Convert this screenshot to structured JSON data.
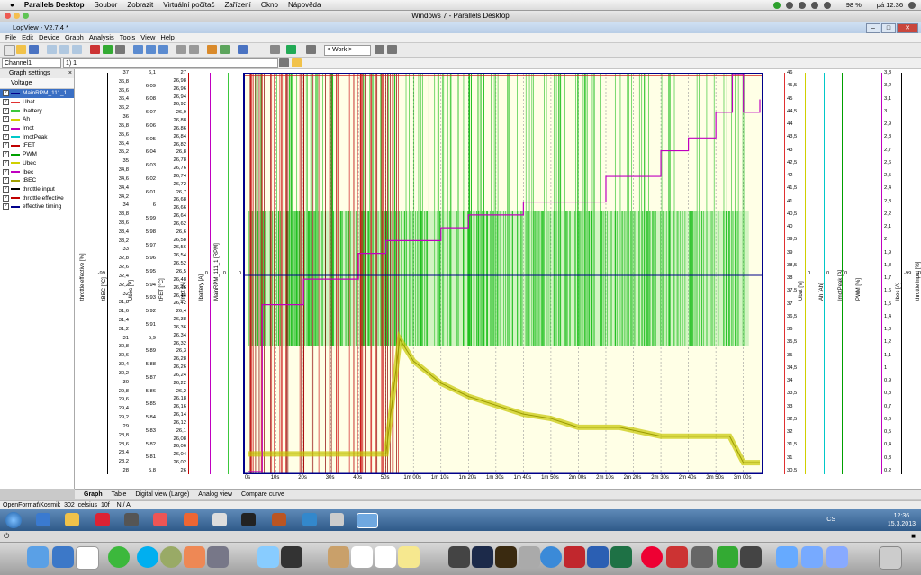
{
  "mac_menubar": {
    "app": "Parallels Desktop",
    "items": [
      "Soubor",
      "Zobrazit",
      "Virtuální počítač",
      "Zařízení",
      "Okno",
      "Nápověda"
    ],
    "battery": "98 %",
    "clock": "pá 12:36"
  },
  "parallels_title": "Windows 7 - Parallels Desktop",
  "window": {
    "title": "LogView - V2.7.4 *",
    "menu": [
      "File",
      "Edit",
      "Device",
      "Graph",
      "Analysis",
      "Tools",
      "View",
      "Help"
    ],
    "work_select": "< Work >",
    "channel_select": "Channel1",
    "expression": "1) 1"
  },
  "left_panel": {
    "header": "Graph settings",
    "tab": "Voltage",
    "items": [
      {
        "label": "MainRPM_111_1",
        "color": "#00008b",
        "checked": true,
        "selected": true
      },
      {
        "label": "Ubat",
        "color": "#e03030",
        "checked": true
      },
      {
        "label": "Ibattery",
        "color": "#3cc83c",
        "checked": true
      },
      {
        "label": "Ah",
        "color": "#d0d000",
        "checked": true
      },
      {
        "label": "Imot",
        "color": "#c000c0",
        "checked": true
      },
      {
        "label": "ImotPeak",
        "color": "#00c8c8",
        "checked": true
      },
      {
        "label": "tFET",
        "color": "#c00000",
        "checked": true
      },
      {
        "label": "PWM",
        "color": "#00a000",
        "checked": true
      },
      {
        "label": "Ubec",
        "color": "#d0d000",
        "checked": true
      },
      {
        "label": "Ibec",
        "color": "#c000c0",
        "checked": true
      },
      {
        "label": "tBEC",
        "color": "#a0a000",
        "checked": true
      },
      {
        "label": "throttle input",
        "color": "#000000",
        "checked": true
      },
      {
        "label": "throttle effective",
        "color": "#c00000",
        "checked": true
      },
      {
        "label": "effective timing",
        "color": "#00008b",
        "checked": true
      }
    ]
  },
  "axes_left": [
    {
      "label": "throttle effective [%]",
      "ticks": [
        "-99"
      ],
      "color": "#000000"
    },
    {
      "label": "tBEC [°C]",
      "ticks": [
        "37",
        "36,8",
        "36,6",
        "36,4",
        "36,2",
        "36",
        "35,8",
        "35,6",
        "35,4",
        "35,2",
        "35",
        "34,8",
        "34,6",
        "34,4",
        "34,2",
        "34",
        "33,8",
        "33,6",
        "33,4",
        "33,2",
        "33",
        "32,8",
        "32,6",
        "32,4",
        "32,2",
        "32",
        "31,8",
        "31,6",
        "31,4",
        "31,2",
        "31",
        "30,8",
        "30,6",
        "30,4",
        "30,2",
        "30",
        "29,8",
        "29,6",
        "29,4",
        "29,2",
        "29",
        "28,8",
        "28,6",
        "28,4",
        "28,2",
        "28"
      ],
      "color": "#a0a000"
    },
    {
      "label": "Ubec [V]",
      "ticks": [
        "6,1",
        "6,09",
        "6,08",
        "6,07",
        "6,06",
        "6,05",
        "6,04",
        "6,03",
        "6,02",
        "6,01",
        "6",
        "5,99",
        "5,98",
        "5,97",
        "5,96",
        "5,95",
        "5,94",
        "5,93",
        "5,92",
        "5,91",
        "5,9",
        "5,89",
        "5,88",
        "5,87",
        "5,86",
        "5,85",
        "5,84",
        "5,83",
        "5,82",
        "5,81",
        "5,8"
      ],
      "color": "#d0d000"
    },
    {
      "label": "tFET [°C]",
      "ticks": [
        "27",
        "26,98",
        "26,96",
        "26,94",
        "26,92",
        "26,9",
        "26,88",
        "26,86",
        "26,84",
        "26,82",
        "26,8",
        "26,78",
        "26,76",
        "26,74",
        "26,72",
        "26,7",
        "26,68",
        "26,66",
        "26,64",
        "26,62",
        "26,6",
        "26,58",
        "26,56",
        "26,54",
        "26,52",
        "26,5",
        "26,48",
        "26,46",
        "26,44",
        "26,42",
        "26,4",
        "26,38",
        "26,36",
        "26,34",
        "26,32",
        "26,3",
        "26,28",
        "26,26",
        "26,24",
        "26,22",
        "26,2",
        "26,18",
        "26,16",
        "26,14",
        "26,12",
        "26,1",
        "26,08",
        "26,06",
        "26,04",
        "26,02",
        "26"
      ],
      "color": "#c00000"
    },
    {
      "label": "Imot [A]",
      "ticks": [
        "0"
      ],
      "color": "#c000c0"
    },
    {
      "label": "Ibattery [A]",
      "ticks": [
        "0"
      ],
      "color": "#3cc83c"
    },
    {
      "label": "MainRPM_111_1 [RPM]",
      "ticks": [
        "0"
      ],
      "color": "#00008b"
    }
  ],
  "axes_right": [
    {
      "label": "Ubat [V]",
      "ticks": [
        "46",
        "45,5",
        "45",
        "44,5",
        "44",
        "43,5",
        "43",
        "42,5",
        "42",
        "41,5",
        "41",
        "40,5",
        "40",
        "39,5",
        "39",
        "38,5",
        "38",
        "37,5",
        "37",
        "36,5",
        "36",
        "35,5",
        "35",
        "34,5",
        "34",
        "33,5",
        "33",
        "32,5",
        "32",
        "31,5",
        "31",
        "30,5"
      ],
      "color": "#e03030"
    },
    {
      "label": "Ah [Ah]",
      "ticks": [
        "0"
      ],
      "color": "#d0d000"
    },
    {
      "label": "ImotPeak [A]",
      "ticks": [
        "0"
      ],
      "color": "#00c8c8"
    },
    {
      "label": "PWM [%]",
      "ticks": [
        "0"
      ],
      "color": "#00a000"
    },
    {
      "label": "Ibec [A]",
      "ticks": [
        "3,3",
        "3,2",
        "3,1",
        "3",
        "2,9",
        "2,8",
        "2,7",
        "2,6",
        "2,5",
        "2,4",
        "2,3",
        "2,2",
        "2,1",
        "2",
        "1,9",
        "1,8",
        "1,7",
        "1,6",
        "1,5",
        "1,4",
        "1,3",
        "1,2",
        "1,1",
        "1",
        "0,9",
        "0,8",
        "0,7",
        "0,6",
        "0,5",
        "0,4",
        "0,3",
        "0,2"
      ],
      "color": "#c000c0"
    },
    {
      "label": "throttle input [%]",
      "ticks": [
        "-99"
      ],
      "color": "#000000"
    },
    {
      "label": "effective timing [°]",
      "ticks": [
        "0"
      ],
      "color": "#00008b"
    }
  ],
  "x_ticks": [
    "0s",
    "10s",
    "20s",
    "30s",
    "40s",
    "50s",
    "1m 00s",
    "1m 10s",
    "1m 20s",
    "1m 30s",
    "1m 40s",
    "1m 50s",
    "2m 00s",
    "2m 10s",
    "2m 20s",
    "2m 30s",
    "2m 40s",
    "2m 50s",
    "3m 00s"
  ],
  "bottom_tabs": [
    "Graph",
    "Table",
    "Digital view (Large)",
    "Analog view",
    "Compare curve"
  ],
  "status": {
    "file": "OpenFormat\\Kosmik_302_celsius_10f",
    "value": "N / A"
  },
  "taskbar": {
    "language": "CS",
    "time": "12:36",
    "date": "15.3.2013"
  },
  "chart_data": {
    "type": "line",
    "title": "",
    "xlabel": "",
    "x_unit": "time",
    "x_range_s": [
      0,
      186
    ],
    "series": [
      {
        "name": "tBEC",
        "unit": "°C",
        "points": [
          [
            0,
            28.4
          ],
          [
            50,
            28.4
          ],
          [
            55,
            31
          ],
          [
            60,
            30.5
          ],
          [
            70,
            30
          ],
          [
            80,
            29.7
          ],
          [
            90,
            29.5
          ],
          [
            100,
            29.3
          ],
          [
            110,
            29.2
          ],
          [
            120,
            29
          ],
          [
            135,
            29
          ],
          [
            150,
            28.8
          ],
          [
            165,
            28.8
          ],
          [
            175,
            28.8
          ],
          [
            180,
            28.2
          ],
          [
            186,
            28.2
          ]
        ]
      },
      {
        "name": "Ubat",
        "unit": "V",
        "points": [
          [
            0,
            30.5
          ],
          [
            5,
            37
          ],
          [
            20,
            38
          ],
          [
            40,
            39
          ],
          [
            50,
            39.5
          ],
          [
            70,
            40
          ],
          [
            80,
            40.5
          ],
          [
            100,
            41
          ],
          [
            130,
            42
          ],
          [
            150,
            43
          ],
          [
            160,
            43.5
          ],
          [
            170,
            44.5
          ],
          [
            176,
            46
          ],
          [
            180,
            44.5
          ],
          [
            186,
            45
          ]
        ]
      },
      {
        "name": "PWM",
        "unit": "%",
        "note": "oscillating between 0 and 100 during flight",
        "points": [
          [
            0,
            0
          ],
          [
            186,
            0
          ]
        ]
      }
    ]
  }
}
